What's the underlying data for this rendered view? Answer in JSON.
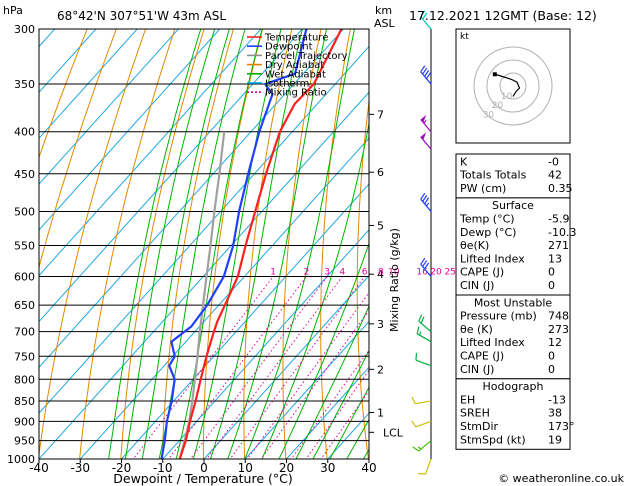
{
  "header": {
    "location": "68°42'N 307°51'W 43m ASL",
    "datetime": "17.12.2021 12GMT (Base: 12)",
    "hpa_label": "hPa",
    "km_label": "km",
    "asl_label": "ASL"
  },
  "footer": {
    "credit": "© weatheronline.co.uk"
  },
  "legend": [
    {
      "label": "Temperature",
      "color": "#ff2020",
      "dash": ""
    },
    {
      "label": "Dewpoint",
      "color": "#2040ff",
      "dash": ""
    },
    {
      "label": "Parcel Trajectory",
      "color": "#909090",
      "dash": ""
    },
    {
      "label": "Dry Adiabat",
      "color": "#e08000",
      "dash": ""
    },
    {
      "label": "Wet Adiabat",
      "color": "#00b000",
      "dash": ""
    },
    {
      "label": "Isotherm",
      "color": "#00a0e0",
      "dash": ""
    },
    {
      "label": "Mixing Ratio",
      "color": "#e000a0",
      "dash": "2,2"
    }
  ],
  "chart_data": {
    "type": "skew-t",
    "xlabel": "Dewpoint / Temperature (°C)",
    "ylabel_right": "Mixing Ratio (g/kg)",
    "xlim": [
      -40,
      40
    ],
    "ylim": [
      1000,
      300
    ],
    "x_ticks": [
      "-40",
      "-30",
      "-20",
      "-10",
      "0",
      "10",
      "20",
      "30",
      "40"
    ],
    "pressure_levels": [
      300,
      350,
      400,
      450,
      500,
      550,
      600,
      650,
      700,
      750,
      800,
      850,
      900,
      950,
      1000
    ],
    "height_km": [
      {
        "km": "1",
        "p": 878
      },
      {
        "km": "2",
        "p": 778
      },
      {
        "km": "3",
        "p": 685
      },
      {
        "km": "4",
        "p": 596
      },
      {
        "km": "5",
        "p": 520
      },
      {
        "km": "6",
        "p": 448
      },
      {
        "km": "7",
        "p": 381
      }
    ],
    "lcl": {
      "label": "LCL",
      "p": 928
    },
    "mixing_ratio_labels": [
      "1",
      "2",
      "3",
      "4",
      "6",
      "8",
      "10",
      "16",
      "20",
      "25"
    ],
    "mixing_ratios": [
      1,
      2,
      3,
      4,
      6,
      8,
      10,
      16,
      20,
      25
    ],
    "temperature": [
      [
        1000,
        -5.9
      ],
      [
        950,
        -8.4
      ],
      [
        900,
        -11.6
      ],
      [
        850,
        -14.7
      ],
      [
        800,
        -18.2
      ],
      [
        750,
        -21.8
      ],
      [
        700,
        -25.4
      ],
      [
        680,
        -26.8
      ],
      [
        650,
        -28.5
      ],
      [
        600,
        -31.6
      ],
      [
        550,
        -36.5
      ],
      [
        500,
        -41.6
      ],
      [
        450,
        -47.2
      ],
      [
        400,
        -53
      ],
      [
        370,
        -55.5
      ],
      [
        350,
        -55.2
      ],
      [
        300,
        -60.5
      ]
    ],
    "dewpoint": [
      [
        1000,
        -10.3
      ],
      [
        950,
        -13.5
      ],
      [
        900,
        -17.2
      ],
      [
        850,
        -20.5
      ],
      [
        800,
        -24.5
      ],
      [
        770,
        -28.8
      ],
      [
        750,
        -29.5
      ],
      [
        720,
        -33.5
      ],
      [
        700,
        -32.5
      ],
      [
        690,
        -32
      ],
      [
        650,
        -32.8
      ],
      [
        600,
        -35
      ],
      [
        550,
        -39.5
      ],
      [
        500,
        -45.5
      ],
      [
        450,
        -51.5
      ],
      [
        400,
        -58
      ],
      [
        360,
        -63
      ],
      [
        350,
        -67
      ],
      [
        340,
        -62
      ],
      [
        300,
        -69
      ]
    ],
    "parcel": [
      [
        1000,
        -5.9
      ],
      [
        928,
        -10
      ],
      [
        900,
        -11.8
      ],
      [
        850,
        -15.5
      ],
      [
        800,
        -19.6
      ],
      [
        750,
        -24
      ],
      [
        700,
        -28.8
      ],
      [
        650,
        -33.8
      ],
      [
        600,
        -39.2
      ],
      [
        550,
        -45
      ],
      [
        500,
        -51.5
      ],
      [
        450,
        -58.5
      ],
      [
        400,
        -66.5
      ]
    ]
  },
  "hodograph": {
    "label": "kt",
    "ring_labels": [
      "10",
      "20",
      "30"
    ],
    "trace": [
      [
        0.0,
        -8.0
      ],
      [
        2.5,
        -4.0
      ],
      [
        5.0,
        -1.5
      ],
      [
        3.0,
        3.0
      ],
      [
        -1.0,
        5.0
      ],
      [
        -4.0,
        6.0
      ],
      [
        -12.0,
        8.5
      ],
      [
        -14.0,
        9.0
      ]
    ]
  },
  "indices": {
    "basic": [
      {
        "label": "K",
        "value": "-0"
      },
      {
        "label": "Totals Totals",
        "value": "42"
      },
      {
        "label": "PW (cm)",
        "value": "0.35"
      }
    ],
    "surface": {
      "title": "Surface",
      "rows": [
        {
          "label": "Temp (°C)",
          "value": "-5.9"
        },
        {
          "label": "Dewp (°C)",
          "value": "-10.3"
        },
        {
          "label": "θe(K)",
          "value": "271"
        },
        {
          "label": "Lifted Index",
          "value": "13"
        },
        {
          "label": "CAPE (J)",
          "value": "0"
        },
        {
          "label": "CIN (J)",
          "value": "0"
        }
      ]
    },
    "most_unstable": {
      "title": "Most Unstable",
      "rows": [
        {
          "label": "Pressure (mb)",
          "value": "748"
        },
        {
          "label": "θe (K)",
          "value": "273"
        },
        {
          "label": "Lifted Index",
          "value": "12"
        },
        {
          "label": "CAPE (J)",
          "value": "0"
        },
        {
          "label": "CIN (J)",
          "value": "0"
        }
      ]
    },
    "hodograph_box": {
      "title": "Hodograph",
      "rows": [
        {
          "label": "EH",
          "value": "-13"
        },
        {
          "label": "SREH",
          "value": "38"
        },
        {
          "label": "StmDir",
          "value": "173°"
        },
        {
          "label": "StmSpd (kt)",
          "value": "19"
        }
      ]
    }
  },
  "wind_barbs": [
    {
      "p": 1000,
      "dir": 200,
      "spd": 10,
      "color": "#d0c000"
    },
    {
      "p": 950,
      "dir": 230,
      "spd": 15,
      "color": "#40c000"
    },
    {
      "p": 900,
      "dir": 250,
      "spd": 10,
      "color": "#d0c000"
    },
    {
      "p": 850,
      "dir": 260,
      "spd": 10,
      "color": "#d0c000"
    },
    {
      "p": 770,
      "dir": 290,
      "spd": 10,
      "color": "#00b040"
    },
    {
      "p": 720,
      "dir": 300,
      "spd": 15,
      "color": "#00b040"
    },
    {
      "p": 700,
      "dir": 310,
      "spd": 20,
      "color": "#00b040"
    },
    {
      "p": 600,
      "dir": 320,
      "spd": 30,
      "color": "#2040ff"
    },
    {
      "p": 500,
      "dir": 320,
      "spd": 35,
      "color": "#2040ff"
    },
    {
      "p": 420,
      "dir": 320,
      "spd": 50,
      "color": "#a000c0"
    },
    {
      "p": 400,
      "dir": 320,
      "spd": 55,
      "color": "#a000c0"
    },
    {
      "p": 350,
      "dir": 320,
      "spd": 40,
      "color": "#2040ff"
    },
    {
      "p": 300,
      "dir": 320,
      "spd": 20,
      "color": "#00c0c0"
    }
  ]
}
